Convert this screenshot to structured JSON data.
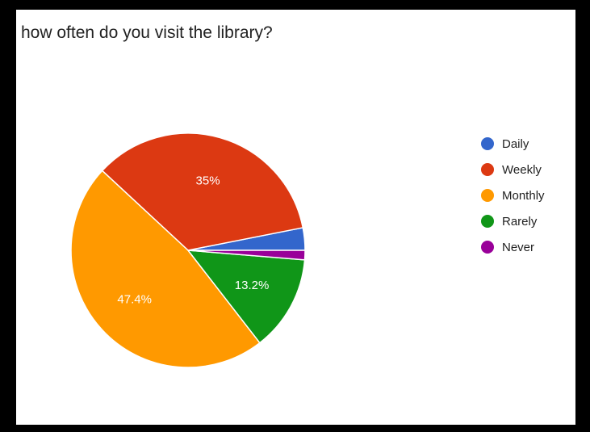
{
  "chart_data": {
    "type": "pie",
    "title": "how often do you visit the library?",
    "categories": [
      "Daily",
      "Weekly",
      "Monthly",
      "Rarely",
      "Never"
    ],
    "values": [
      3.1,
      35,
      47.4,
      13.2,
      1.3
    ],
    "value_labels": [
      "",
      "35%",
      "47.4%",
      "13.2%",
      ""
    ],
    "colors": [
      "#3366cc",
      "#dc3912",
      "#ff9900",
      "#109618",
      "#990099"
    ],
    "legend_position": "right"
  }
}
